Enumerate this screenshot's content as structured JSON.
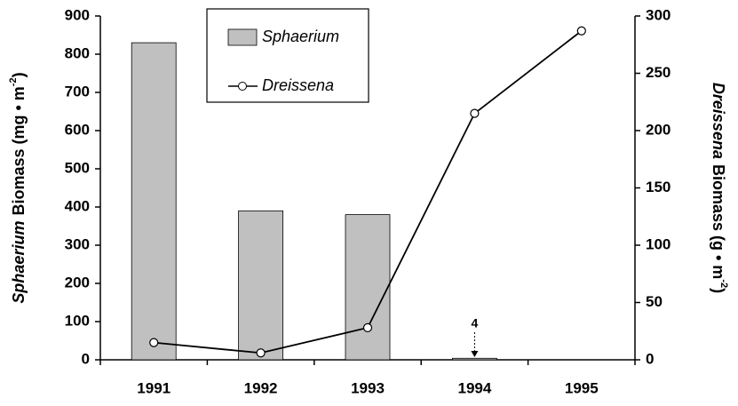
{
  "chart_data": {
    "type": "bar-line",
    "y_label": {
      "italic": "Sphaerium",
      "text": "Biomass (mg • m",
      "sup": "-2",
      "end": ")"
    },
    "y2_label": {
      "italic": "Dreissena",
      "text": "Biomass (g • m",
      "sup": "-2",
      "end": ")"
    },
    "categories": [
      "1991",
      "1992",
      "1993",
      "1994",
      "1995"
    ],
    "series": [
      {
        "name": "Sphaerium",
        "type": "bar",
        "color": "#c0c0c0",
        "values": [
          830,
          390,
          380,
          4,
          null
        ]
      },
      {
        "name": "Dreissena",
        "type": "line",
        "axis": "y2",
        "color": "#000000",
        "values": [
          15,
          6,
          28,
          215,
          287
        ]
      }
    ],
    "annotation": "4",
    "ylim": [
      0,
      900
    ],
    "yticks": [
      0,
      100,
      200,
      300,
      400,
      500,
      600,
      700,
      800,
      900
    ],
    "y2lim": [
      0,
      300
    ],
    "y2ticks": [
      0,
      50,
      100,
      150,
      200,
      250,
      300
    ]
  }
}
